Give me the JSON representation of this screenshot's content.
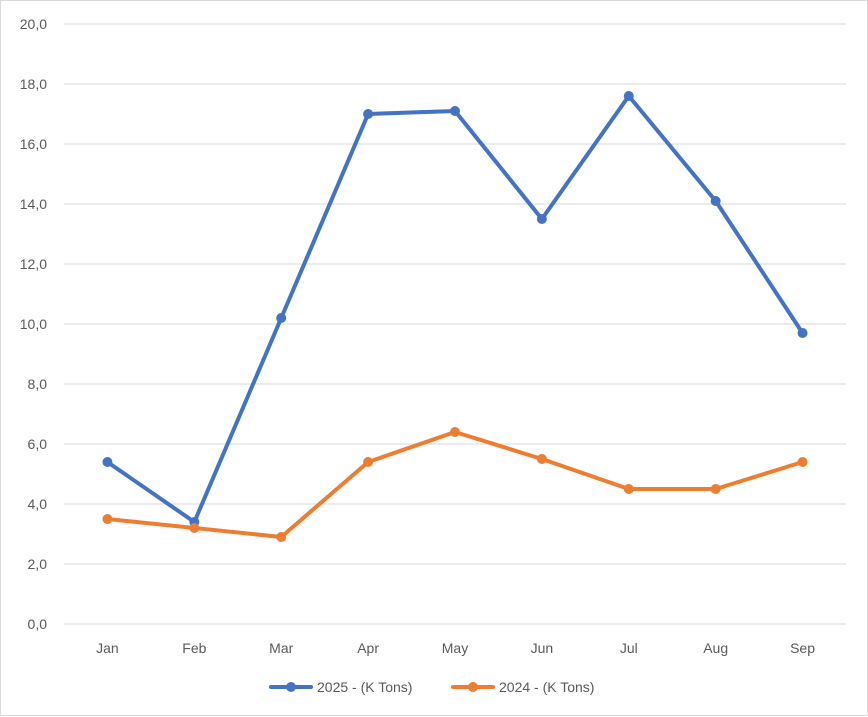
{
  "chart_data": {
    "type": "line",
    "title": "",
    "xlabel": "",
    "ylabel": "",
    "categories": [
      "Jan",
      "Feb",
      "Mar",
      "Apr",
      "May",
      "Jun",
      "Jul",
      "Aug",
      "Sep"
    ],
    "ylim": [
      0,
      20
    ],
    "yticks": [
      "0,0",
      "2,0",
      "4,0",
      "6,0",
      "8,0",
      "10,0",
      "12,0",
      "14,0",
      "16,0",
      "18,0",
      "20,0"
    ],
    "grid": true,
    "legend_position": "bottom",
    "series": [
      {
        "name": "2025 - (K Tons)",
        "color": "#4472c4",
        "values": [
          5.4,
          3.4,
          10.2,
          17.0,
          17.1,
          13.5,
          17.6,
          14.1,
          9.7
        ]
      },
      {
        "name": "2024 - (K Tons)",
        "color": "#ed7d31",
        "values": [
          3.5,
          3.2,
          2.9,
          5.4,
          6.4,
          5.5,
          4.5,
          4.5,
          5.4
        ]
      }
    ]
  }
}
